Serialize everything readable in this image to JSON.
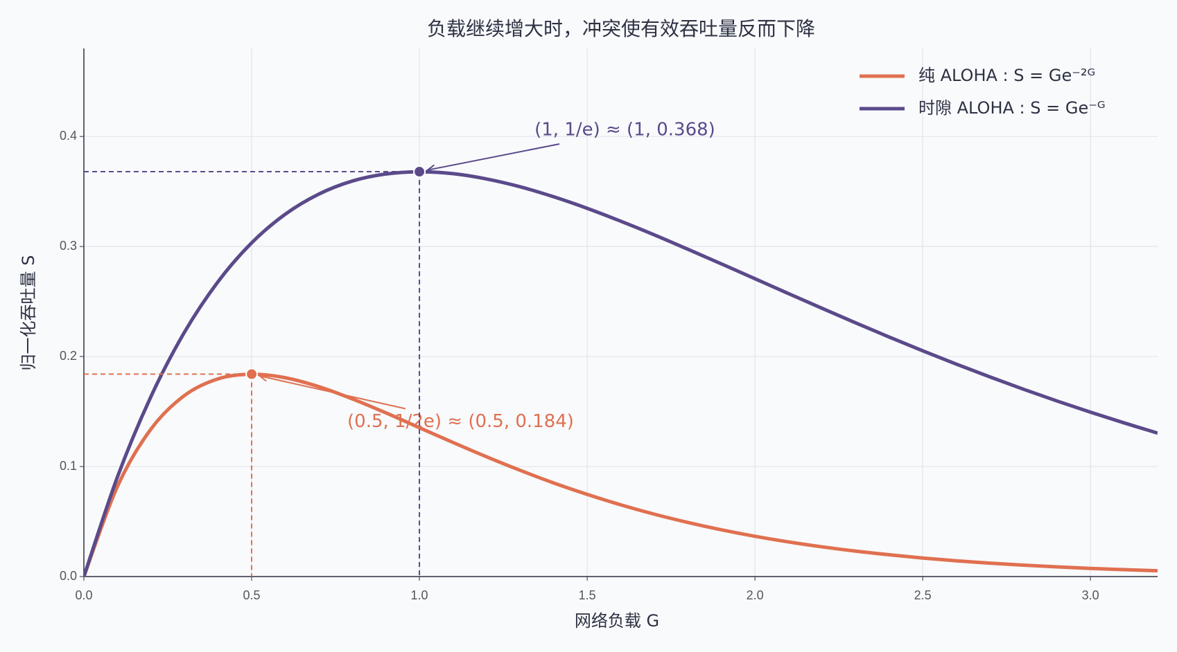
{
  "chart_data": {
    "type": "line",
    "title": "负载继续增大时，冲突使有效吞吐量反而下降",
    "x_label": "网络负载 G",
    "y_label": "归一化吞吐量 S",
    "x": [
      0,
      0.1,
      0.2,
      0.3,
      0.4,
      0.5,
      0.6,
      0.7,
      0.8,
      0.9,
      1.0,
      1.1,
      1.2,
      1.3,
      1.4,
      1.5,
      1.6,
      1.7,
      1.8,
      1.9,
      2.0,
      2.1,
      2.2,
      2.3,
      2.4,
      2.5,
      2.6,
      2.7,
      2.8,
      2.9,
      3.0,
      3.1,
      3.2
    ],
    "series": [
      {
        "name": "纯 ALOHA : S = Ge⁻²ᴳ",
        "color": "#e07050",
        "values": [
          0,
          0.0819,
          0.1341,
          0.1646,
          0.1797,
          0.1839,
          0.1807,
          0.1726,
          0.1615,
          0.1488,
          0.1353,
          0.1219,
          0.1089,
          0.0966,
          0.0851,
          0.0747,
          0.0652,
          0.0567,
          0.0492,
          0.0425,
          0.0366,
          0.0315,
          0.027,
          0.0231,
          0.0198,
          0.0168,
          0.0143,
          0.0122,
          0.0104,
          0.0088,
          0.0074,
          0.0063,
          0.0053
        ]
      },
      {
        "name": "时隙 ALOHA : S = Ge⁻ᴳ",
        "color": "#5b4a8a",
        "values": [
          0,
          0.0905,
          0.1637,
          0.2222,
          0.2681,
          0.3033,
          0.3293,
          0.3476,
          0.3595,
          0.3659,
          0.3679,
          0.3662,
          0.3614,
          0.3543,
          0.3452,
          0.3347,
          0.323,
          0.3106,
          0.2975,
          0.2842,
          0.2707,
          0.2572,
          0.2438,
          0.2306,
          0.2177,
          0.2052,
          0.1931,
          0.1815,
          0.1703,
          0.1596,
          0.1494,
          0.1397,
          0.1304
        ]
      }
    ],
    "annotations": [
      {
        "text": "(0.5, 1/2e) ≈ (0.5, 0.184)",
        "x": 0.5,
        "y": 0.184,
        "color": "#e07050"
      },
      {
        "text": "(1, 1/e) ≈ (1, 0.368)",
        "x": 1,
        "y": 0.368,
        "color": "#5b4a8a"
      }
    ],
    "xlim": [
      0,
      3.2
    ],
    "ylim": [
      0,
      0.48
    ],
    "xticks": [
      {
        "value": 0,
        "label": "0.0"
      },
      0.5,
      {
        "value": 1,
        "label": "1.0"
      },
      1.5,
      {
        "value": 2,
        "label": "2.0"
      },
      2.5,
      {
        "value": 3,
        "label": "3.0"
      }
    ],
    "yticks": [
      {
        "value": 0,
        "label": "0.0"
      },
      0.1,
      0.2,
      0.3,
      0.4
    ],
    "grid": true,
    "legend": "upper right"
  }
}
